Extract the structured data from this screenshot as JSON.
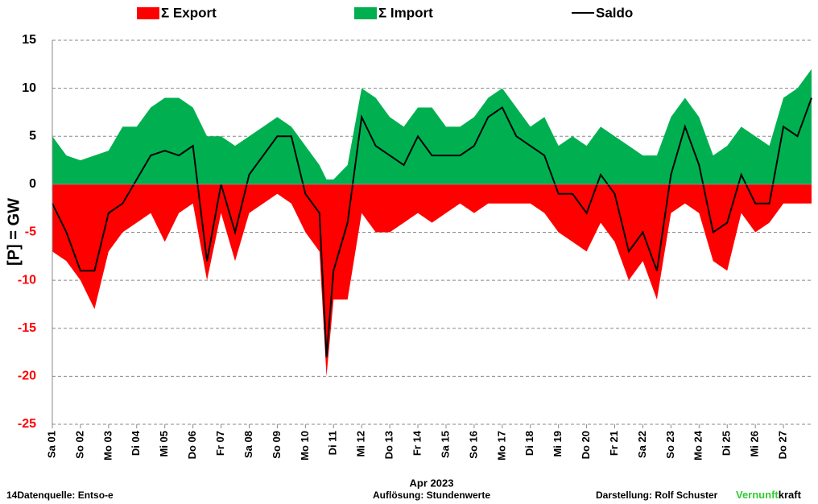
{
  "chart_data": {
    "type": "area",
    "ylabel": "[P]  = GW",
    "xlabel": "Apr 2023",
    "x": [
      0,
      0.5,
      1,
      1.5,
      2,
      2.5,
      3,
      3.5,
      4,
      4.5,
      5,
      5.5,
      6,
      6.5,
      7,
      7.5,
      8,
      8.5,
      9,
      9.5,
      9.75,
      10,
      10.5,
      11,
      11.5,
      12,
      12.5,
      13,
      13.5,
      14,
      14.5,
      15,
      15.5,
      16,
      16.5,
      17,
      17.5,
      18,
      18.5,
      19,
      19.5,
      20,
      20.5,
      21,
      21.5,
      22,
      22.5,
      23,
      23.5,
      24,
      24.5,
      25,
      25.5,
      26,
      26.5,
      27
    ],
    "series": [
      {
        "name": "Σ Export",
        "color": "#ff0000",
        "kind": "area",
        "values": [
          -7,
          -8,
          -10,
          -13,
          -7,
          -5,
          -4,
          -3,
          -6,
          -3,
          -2,
          -10,
          -3,
          -8,
          -3,
          -2,
          -1,
          -2,
          -5,
          -7,
          -20,
          -12,
          -12,
          -3,
          -5,
          -5,
          -4,
          -3,
          -4,
          -3,
          -2,
          -3,
          -2,
          -2,
          -2,
          -2,
          -3,
          -5,
          -6,
          -7,
          -4,
          -6,
          -10,
          -8,
          -12,
          -3,
          -2,
          -3,
          -8,
          -9,
          -3,
          -5,
          -4,
          -2,
          -2,
          -2
        ]
      },
      {
        "name": "Σ Import",
        "color": "#00b050",
        "kind": "area",
        "values": [
          5,
          3,
          2.5,
          3,
          3.5,
          6,
          6,
          8,
          9,
          9,
          8,
          5,
          5,
          4,
          5,
          6,
          7,
          6,
          4,
          2,
          0.5,
          0.5,
          2,
          10,
          9,
          7,
          6,
          8,
          8,
          6,
          6,
          7,
          9,
          10,
          8,
          6,
          7,
          4,
          5,
          4,
          6,
          5,
          4,
          3,
          3,
          7,
          9,
          7,
          3,
          4,
          6,
          5,
          4,
          9,
          10,
          12
        ]
      },
      {
        "name": "Saldo",
        "color": "#000000",
        "kind": "line",
        "values": [
          -2,
          -5,
          -9,
          -9,
          -3,
          -2,
          0.5,
          3,
          3.5,
          3,
          4,
          -8,
          0,
          -5,
          1,
          3,
          5,
          5,
          -1,
          -3,
          -18,
          -9,
          -4,
          7,
          4,
          3,
          2,
          5,
          3,
          3,
          3,
          4,
          7,
          8,
          5,
          4,
          3,
          -1,
          -1,
          -3,
          1,
          -1,
          -7,
          -5,
          -9,
          1,
          6,
          2,
          -5,
          -4,
          1,
          -2,
          -2,
          6,
          5,
          9
        ]
      }
    ],
    "xlim": [
      0,
      27
    ],
    "xticks": [
      {
        "value": 0,
        "label": "Sa 01"
      },
      {
        "value": 1,
        "label": "So 02"
      },
      {
        "value": 2,
        "label": "Mo 03"
      },
      {
        "value": 3,
        "label": "Di 04"
      },
      {
        "value": 4,
        "label": "Mi 05"
      },
      {
        "value": 5,
        "label": "Do 06"
      },
      {
        "value": 6,
        "label": "Fr 07"
      },
      {
        "value": 7,
        "label": "Sa 08"
      },
      {
        "value": 8,
        "label": "So 09"
      },
      {
        "value": 9,
        "label": "Mo 10"
      },
      {
        "value": 10,
        "label": "Di 11"
      },
      {
        "value": 11,
        "label": "Mi 12"
      },
      {
        "value": 12,
        "label": "Do 13"
      },
      {
        "value": 13,
        "label": "Fr 14"
      },
      {
        "value": 14,
        "label": "Sa 15"
      },
      {
        "value": 15,
        "label": "So 16"
      },
      {
        "value": 16,
        "label": "Mo 17"
      },
      {
        "value": 17,
        "label": "Di 18"
      },
      {
        "value": 18,
        "label": "Mi 19"
      },
      {
        "value": 19,
        "label": "Do 20"
      },
      {
        "value": 20,
        "label": "Fr 21"
      },
      {
        "value": 21,
        "label": "Sa 22"
      },
      {
        "value": 22,
        "label": "So 23"
      },
      {
        "value": 23,
        "label": "Mo 24"
      },
      {
        "value": 24,
        "label": "Di 25"
      },
      {
        "value": 25,
        "label": "Mi 26"
      },
      {
        "value": 26,
        "label": "Do 27"
      }
    ],
    "ylim": [
      -25,
      15
    ],
    "yticks": [
      -25,
      -20,
      -15,
      -10,
      -5,
      0,
      5,
      10,
      15
    ],
    "negative_tick_color": "#ff0000",
    "grid": true,
    "footer": {
      "source": "14Datenquelle: Entso-e",
      "resolution": "Auflösung: Stundenwerte",
      "author": "Darstellung:  Rolf Schuster",
      "brand_a": "Vernunft",
      "brand_b": "kraft"
    }
  }
}
